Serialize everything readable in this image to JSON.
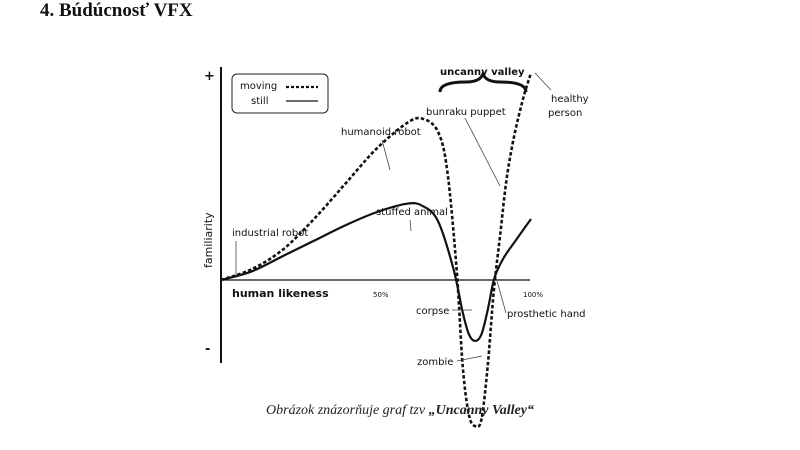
{
  "document": {
    "heading": "4. Búdúcnosť VFX",
    "caption": {
      "prefix": "Obrázok znázorňuje graf tzv ",
      "title": "„Uncanny Valley“"
    }
  },
  "chart_data": {
    "type": "line",
    "ylabel": "familiarity",
    "xlabel": "human likeness",
    "y_ticks": [
      "+",
      "-"
    ],
    "x_ticks": [
      "50%",
      "100%"
    ],
    "xlim": [
      0,
      100
    ],
    "legend": {
      "placement": "top-left",
      "entries": [
        {
          "label": "moving",
          "style": "dashed"
        },
        {
          "label": "still",
          "style": "solid"
        }
      ]
    },
    "region_label": "uncanny valley",
    "series": [
      {
        "name": "moving",
        "x": [
          0,
          10,
          20,
          30,
          40,
          50,
          60,
          65,
          70,
          73,
          76,
          78,
          80,
          82,
          84,
          86,
          88,
          90,
          92,
          94,
          96,
          98,
          100
        ],
        "y": [
          0,
          0.05,
          0.14,
          0.28,
          0.44,
          0.6,
          0.72,
          0.74,
          0.68,
          0.5,
          0.05,
          -0.4,
          -0.62,
          -0.67,
          -0.64,
          -0.4,
          -0.05,
          0.2,
          0.45,
          0.62,
          0.75,
          0.86,
          0.95
        ]
      },
      {
        "name": "still",
        "x": [
          0,
          10,
          20,
          30,
          40,
          50,
          60,
          65,
          70,
          75,
          78,
          80,
          82,
          84,
          86,
          88,
          90,
          92,
          95,
          100
        ],
        "y": [
          0,
          0.04,
          0.11,
          0.18,
          0.25,
          0.31,
          0.35,
          0.34,
          0.27,
          0.05,
          -0.15,
          -0.25,
          -0.28,
          -0.25,
          -0.14,
          0.0,
          0.07,
          0.12,
          0.18,
          0.28
        ]
      }
    ],
    "annotations": [
      {
        "text": "industrial robot",
        "x": 7,
        "y": 0.02
      },
      {
        "text": "humanoid robot",
        "x": 50,
        "y": 0.6
      },
      {
        "text": "stuffed animal",
        "x": 61,
        "y": 0.35
      },
      {
        "text": "bunraku puppet",
        "x": 90,
        "y": 0.42
      },
      {
        "text": "healthy\nperson",
        "x": 100,
        "y": 0.95
      },
      {
        "text": "corpse",
        "x": 82,
        "y": -0.26
      },
      {
        "text": "prosthetic hand",
        "x": 89,
        "y": 0.0
      },
      {
        "text": "zombie",
        "x": 83,
        "y": -0.66
      }
    ]
  }
}
